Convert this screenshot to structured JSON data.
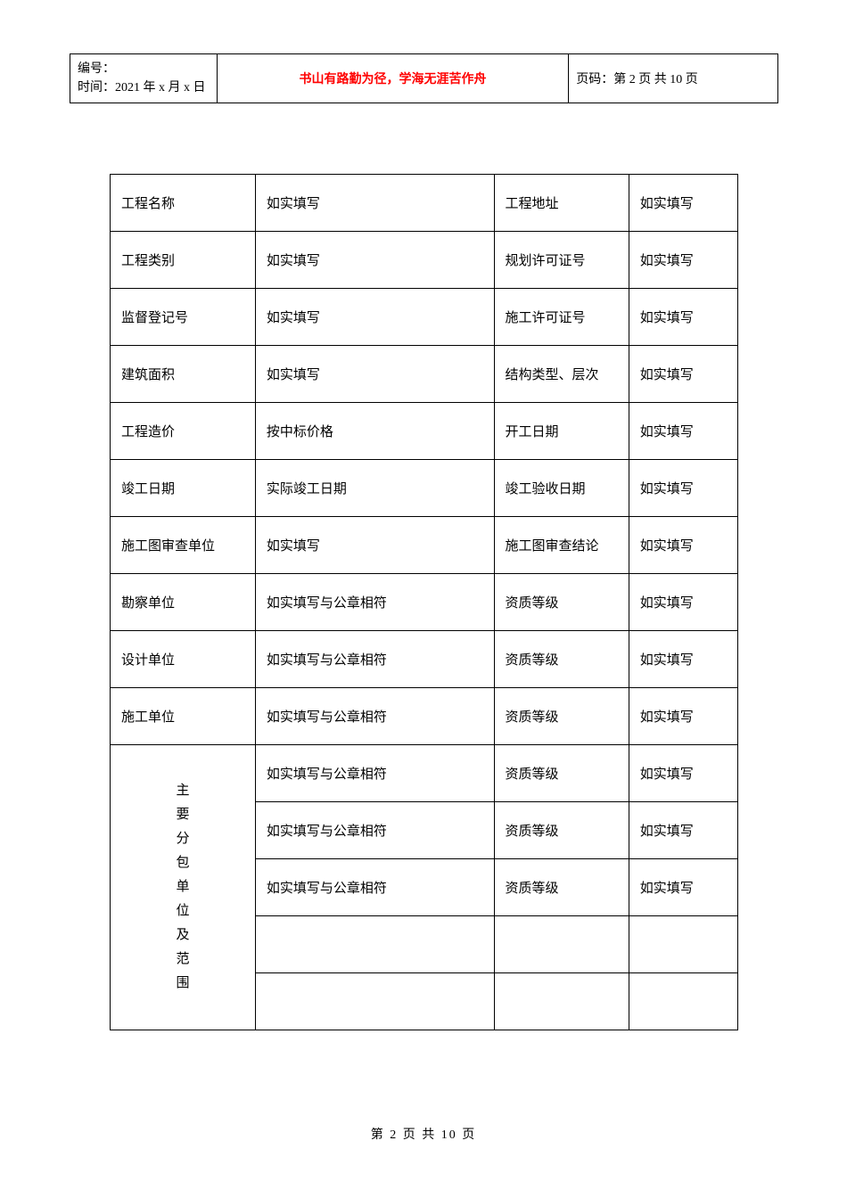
{
  "header": {
    "left_line1": "编号：",
    "left_line2": "时间：2021 年 x 月 x 日",
    "middle": "书山有路勤为径，学海无涯苦作舟",
    "right": "页码：第 2 页  共 10 页"
  },
  "table_rows": [
    {
      "c1": "工程名称",
      "c2": "如实填写",
      "c3": "工程地址",
      "c4": "如实填写"
    },
    {
      "c1": "工程类别",
      "c2": "如实填写",
      "c3": "规划许可证号",
      "c4": "如实填写"
    },
    {
      "c1": "监督登记号",
      "c2": "如实填写",
      "c3": "施工许可证号",
      "c4": "如实填写"
    },
    {
      "c1": "建筑面积",
      "c2": "如实填写",
      "c3": "结构类型、层次",
      "c4": "如实填写"
    },
    {
      "c1": "工程造价",
      "c2": "按中标价格",
      "c3": "开工日期",
      "c4": "如实填写"
    },
    {
      "c1": "竣工日期",
      "c2": "实际竣工日期",
      "c3": "竣工验收日期",
      "c4": "如实填写"
    },
    {
      "c1": "施工图审查单位",
      "c2": "如实填写",
      "c3": "施工图审查结论",
      "c4": "如实填写"
    },
    {
      "c1": "勘察单位",
      "c2": "如实填写与公章相符",
      "c3": "资质等级",
      "c4": "如实填写"
    },
    {
      "c1": "设计单位",
      "c2": "如实填写与公章相符",
      "c3": "资质等级",
      "c4": "如实填写"
    },
    {
      "c1": "施工单位",
      "c2": "如实填写与公章相符",
      "c3": "资质等级",
      "c4": "如实填写"
    }
  ],
  "sub_rows": [
    {
      "c2": "如实填写与公章相符",
      "c3": "资质等级",
      "c4": "如实填写"
    },
    {
      "c2": "如实填写与公章相符",
      "c3": "资质等级",
      "c4": "如实填写"
    },
    {
      "c2": "如实填写与公章相符",
      "c3": "资质等级",
      "c4": "如实填写"
    },
    {
      "c2": "",
      "c3": "",
      "c4": ""
    },
    {
      "c2": "",
      "c3": "",
      "c4": ""
    }
  ],
  "vertical_label": [
    "主",
    "要",
    "分",
    "包",
    "单",
    "位",
    "及",
    "范",
    "围"
  ],
  "footer": "第  2  页  共  10  页",
  "colors": {
    "text": "#000000",
    "accent": "#ff0000",
    "border": "#000000",
    "background": "#ffffff"
  },
  "typography": {
    "body_font": "SimSun",
    "header_accent_font": "SimHei",
    "body_size_pt": 15,
    "header_size_pt": 14,
    "accent_size_pt": 18
  }
}
